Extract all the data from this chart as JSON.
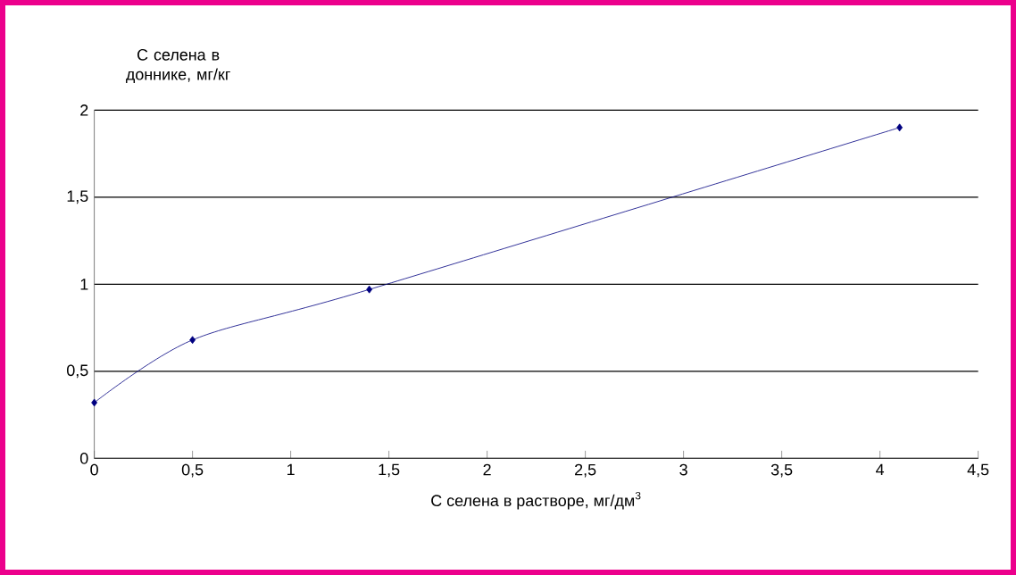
{
  "chart_data": {
    "type": "line",
    "xlabel": "С селена в растворе, мг/дм$^{3}$",
    "ylabel": "С селена в доннике, мг/кг",
    "x": [
      0,
      0.5,
      1.4,
      4.1
    ],
    "series": [
      {
        "color": "#000080",
        "values": [
          0.32,
          0.68,
          0.97,
          1.9
        ]
      }
    ],
    "xlim": [
      0,
      4.5
    ],
    "ylim": [
      0,
      2
    ],
    "xticks": [
      0,
      {
        "value": 0.5,
        "label": "0,5"
      },
      1,
      {
        "value": 1.5,
        "label": "1,5"
      },
      2,
      {
        "value": 2.5,
        "label": "2,5"
      },
      3,
      {
        "value": 3.5,
        "label": "3,5"
      },
      4,
      {
        "value": 4.5,
        "label": "4,5"
      }
    ],
    "yticks": [
      0,
      {
        "value": 0.5,
        "label": "0,5"
      },
      1,
      {
        "value": 1.5,
        "label": "1,5"
      },
      2
    ],
    "grid": "y",
    "marker": "diamond",
    "line_style": "solid"
  }
}
